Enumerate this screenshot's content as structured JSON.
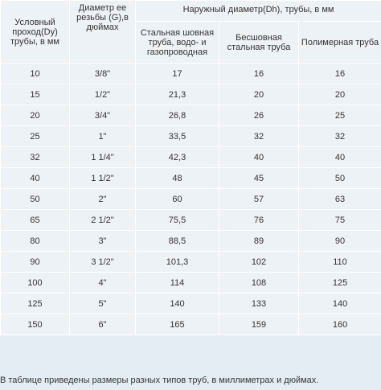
{
  "table": {
    "headers": {
      "dy": "Условный проход(Dy) трубы, в мм",
      "g": "Диаметр ее резьбы (G),в дюймах",
      "dh": "Наружный диаметр(Dh), трубы, в мм",
      "seam": "Стальная шовная труба, водо- и газопроводная",
      "seamless": "Бесшовная стальная труба",
      "polymer": "Полимерная труба"
    },
    "rows": [
      {
        "dy": "10",
        "g": "3/8\"",
        "seam": "17",
        "seamless": "16",
        "polymer": "16"
      },
      {
        "dy": "15",
        "g": "1/2\"",
        "seam": "21,3",
        "seamless": "20",
        "polymer": "20"
      },
      {
        "dy": "20",
        "g": "3/4\"",
        "seam": "26,8",
        "seamless": "26",
        "polymer": "25"
      },
      {
        "dy": "25",
        "g": "1\"",
        "seam": "33,5",
        "seamless": "32",
        "polymer": "32"
      },
      {
        "dy": "32",
        "g": "1 1/4\"",
        "seam": "42,3",
        "seamless": "40",
        "polymer": "40"
      },
      {
        "dy": "40",
        "g": "1 1/2\"",
        "seam": "48",
        "seamless": "45",
        "polymer": "50"
      },
      {
        "dy": "50",
        "g": "2\"",
        "seam": "60",
        "seamless": "57",
        "polymer": "63"
      },
      {
        "dy": "65",
        "g": "2 1/2\"",
        "seam": "75,5",
        "seamless": "76",
        "polymer": "75"
      },
      {
        "dy": "80",
        "g": "3\"",
        "seam": "88,5",
        "seamless": "89",
        "polymer": "90"
      },
      {
        "dy": "90",
        "g": "3 1/2\"",
        "seam": "101,3",
        "seamless": "102",
        "polymer": "110"
      },
      {
        "dy": "100",
        "g": "4\"",
        "seam": "114",
        "seamless": "108",
        "polymer": "125"
      },
      {
        "dy": "125",
        "g": "5\"",
        "seam": "140",
        "seamless": "133",
        "polymer": "140"
      },
      {
        "dy": "150",
        "g": "6\"",
        "seam": "165",
        "seamless": "159",
        "polymer": "160"
      }
    ]
  },
  "note": "В таблице приведены размеры разных типов труб, в миллиметрах и дюймах."
}
